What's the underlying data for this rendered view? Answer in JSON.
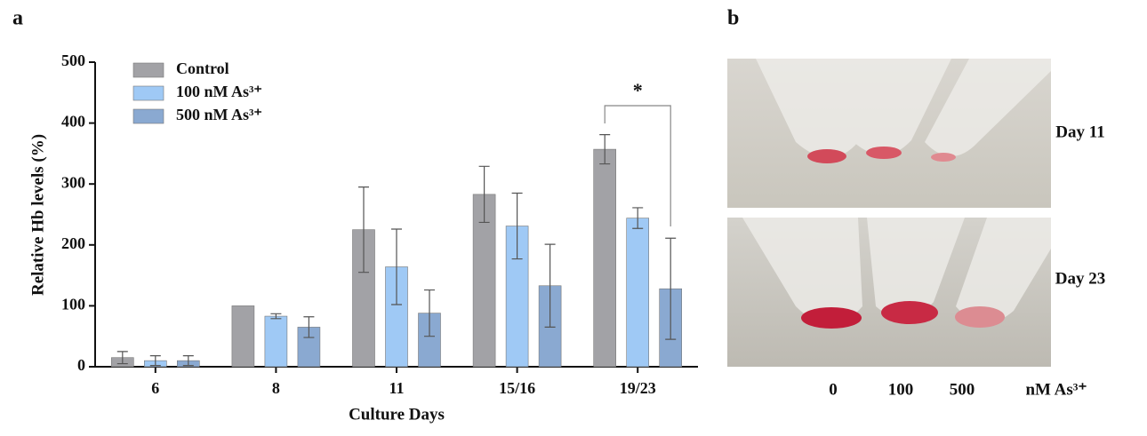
{
  "chart_data": {
    "type": "bar",
    "panel_label": "a",
    "categories": [
      "6",
      "8",
      "11",
      "15/16",
      "19/23"
    ],
    "series": [
      {
        "name": "Control",
        "color": "#a2a2a6",
        "values": [
          15,
          100,
          225,
          283,
          357
        ],
        "errors": [
          10,
          null,
          70,
          46,
          24
        ]
      },
      {
        "name": "100 nM As³⁺",
        "color": "#9fc9f5",
        "values": [
          10,
          83,
          164,
          231,
          244
        ],
        "errors": [
          8,
          4,
          62,
          54,
          17
        ]
      },
      {
        "name": "500 nM As³⁺",
        "color": "#8aa9d1",
        "values": [
          10,
          65,
          88,
          133,
          128
        ],
        "errors": [
          8,
          17,
          38,
          68,
          83
        ]
      }
    ],
    "ylim": [
      0,
      500
    ],
    "yticks": [
      0,
      100,
      200,
      300,
      400,
      500
    ],
    "x_label": "Culture Days",
    "y_label": "Relative Hb levels (%)",
    "annotation": "*"
  },
  "photo_panel": {
    "label": "b",
    "rows": [
      "Day 11",
      "Day 23"
    ],
    "columns": [
      "0",
      "100",
      "500"
    ],
    "unit": "nM As³⁺"
  }
}
